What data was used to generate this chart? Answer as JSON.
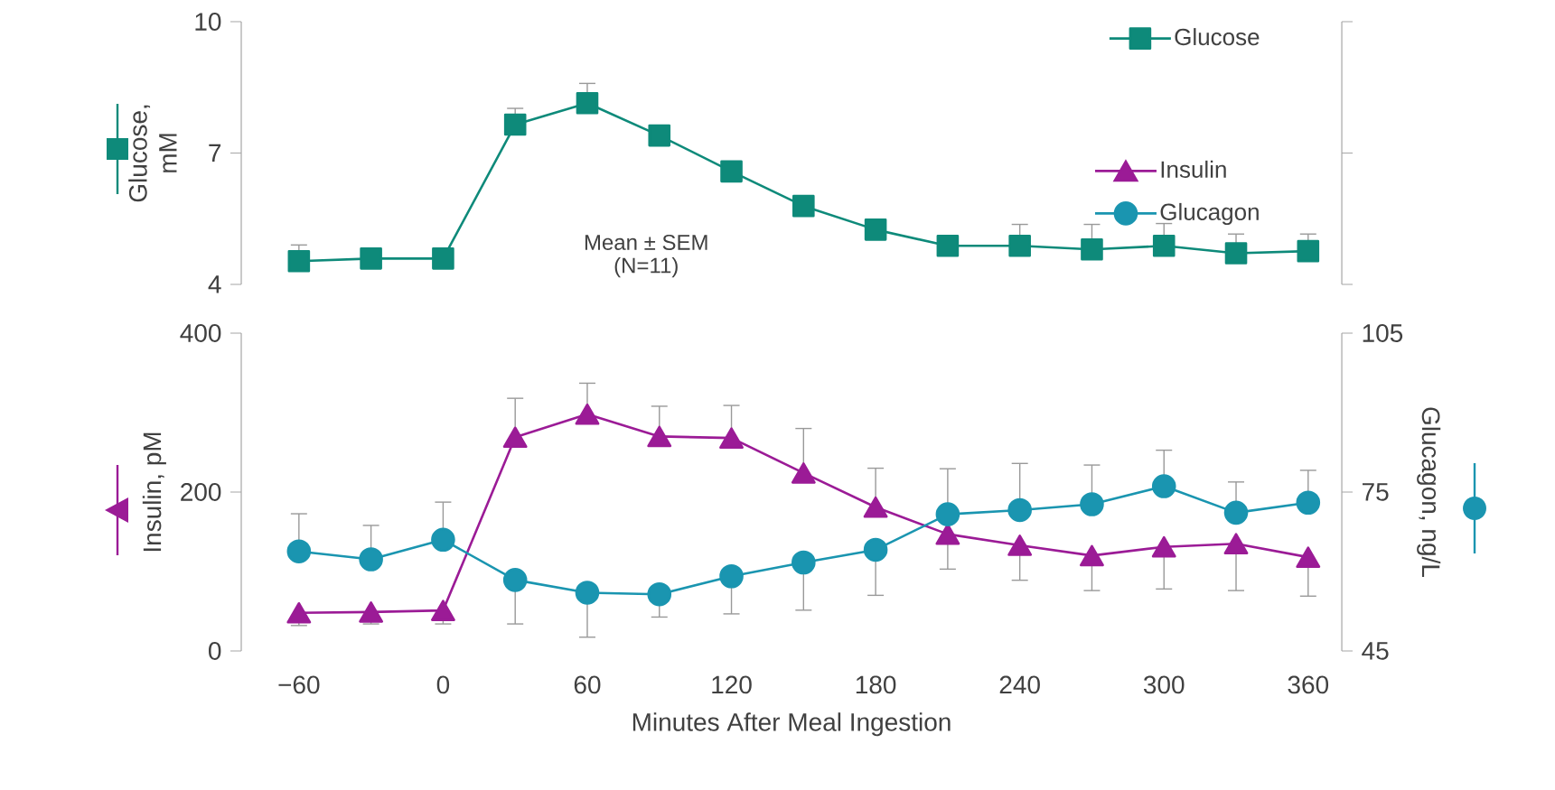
{
  "chart_data": [
    {
      "type": "line",
      "ylabel": "Glucose, mM",
      "annotations": [
        "Mean ± SEM",
        "(N=11)"
      ],
      "x": [
        -60,
        -30,
        0,
        30,
        60,
        90,
        120,
        150,
        180,
        210,
        240,
        270,
        300,
        330,
        360
      ],
      "xlim": [
        -84,
        374
      ],
      "ylim": [
        4,
        10
      ],
      "yticks": [
        4,
        7,
        10
      ],
      "tick_labels": "y",
      "legend": "top right",
      "line_style": "solid",
      "series": [
        {
          "name": "Glucose",
          "color": "#0e8a7a",
          "marker": "square",
          "values": [
            4.53,
            4.59,
            4.59,
            7.65,
            8.14,
            7.4,
            6.58,
            5.79,
            5.25,
            4.88,
            4.88,
            4.8,
            4.88,
            4.71,
            4.76
          ],
          "errors": [
            [
              4.53,
              4.9
            ],
            null,
            null,
            [
              7.65,
              8.02
            ],
            [
              8.14,
              8.59
            ],
            null,
            null,
            null,
            null,
            null,
            [
              4.88,
              5.37
            ],
            [
              4.8,
              5.37
            ],
            [
              4.88,
              5.39
            ],
            [
              4.71,
              5.15
            ],
            [
              4.76,
              5.15
            ]
          ]
        }
      ]
    },
    {
      "type": "line",
      "xlabel": "Minutes After Meal Ingestion",
      "ylabel": "Insulin, pM",
      "y2label": "Glucagon, ng/L",
      "x": [
        -60,
        -30,
        0,
        30,
        60,
        90,
        120,
        150,
        180,
        210,
        240,
        270,
        300,
        330,
        360
      ],
      "xlim": [
        -84,
        374
      ],
      "legend": "top right",
      "xticks": [
        {
          "value": -60,
          "label": "−60"
        },
        0,
        60,
        120,
        180,
        240,
        300,
        360
      ],
      "ylim": [
        0,
        400
      ],
      "yticks": [
        0,
        200,
        400
      ],
      "y2lim": [
        45,
        105
      ],
      "y2ticks": [
        45,
        75,
        105
      ],
      "line_style": "solid",
      "series": [
        {
          "name": "Insulin",
          "color": "#9b1b96",
          "marker": "triangle",
          "values": [
            48,
            49,
            51,
            269,
            298,
            270,
            268,
            224,
            181,
            147,
            133,
            120,
            131,
            135,
            118
          ],
          "errors": [
            [
              32,
              48
            ],
            [
              34,
              49
            ],
            [
              34,
              51
            ],
            [
              269,
              318
            ],
            [
              298,
              337
            ],
            [
              270,
              308
            ],
            [
              268,
              309
            ],
            [
              224,
              280
            ],
            [
              181,
              230
            ],
            [
              103,
              147
            ],
            [
              89,
              133
            ],
            [
              76,
              120
            ],
            [
              78,
              131
            ],
            [
              76,
              135
            ],
            [
              69,
              118
            ]
          ]
        },
        {
          "name": "Glucagon",
          "color": "#1a95b0",
          "marker": "circle",
          "axis": "y2",
          "values": [
            63.8,
            62.3,
            66.0,
            58.4,
            56.0,
            55.7,
            59.1,
            61.7,
            64.1,
            70.8,
            71.6,
            72.7,
            76.1,
            71.1,
            73.0
          ],
          "errors": [
            [
              63.8,
              70.9
            ],
            [
              62.3,
              68.7
            ],
            [
              66.0,
              73.1
            ],
            [
              50.1,
              58.4
            ],
            [
              47.6,
              56.0
            ],
            [
              51.4,
              55.7
            ],
            [
              52.0,
              59.1
            ],
            [
              52.7,
              61.7
            ],
            [
              55.5,
              64.1
            ],
            [
              70.8,
              79.4
            ],
            [
              71.6,
              80.4
            ],
            [
              72.7,
              80.1
            ],
            [
              76.1,
              82.9
            ],
            [
              71.1,
              76.9
            ],
            [
              73.0,
              79.1
            ]
          ]
        }
      ]
    }
  ]
}
